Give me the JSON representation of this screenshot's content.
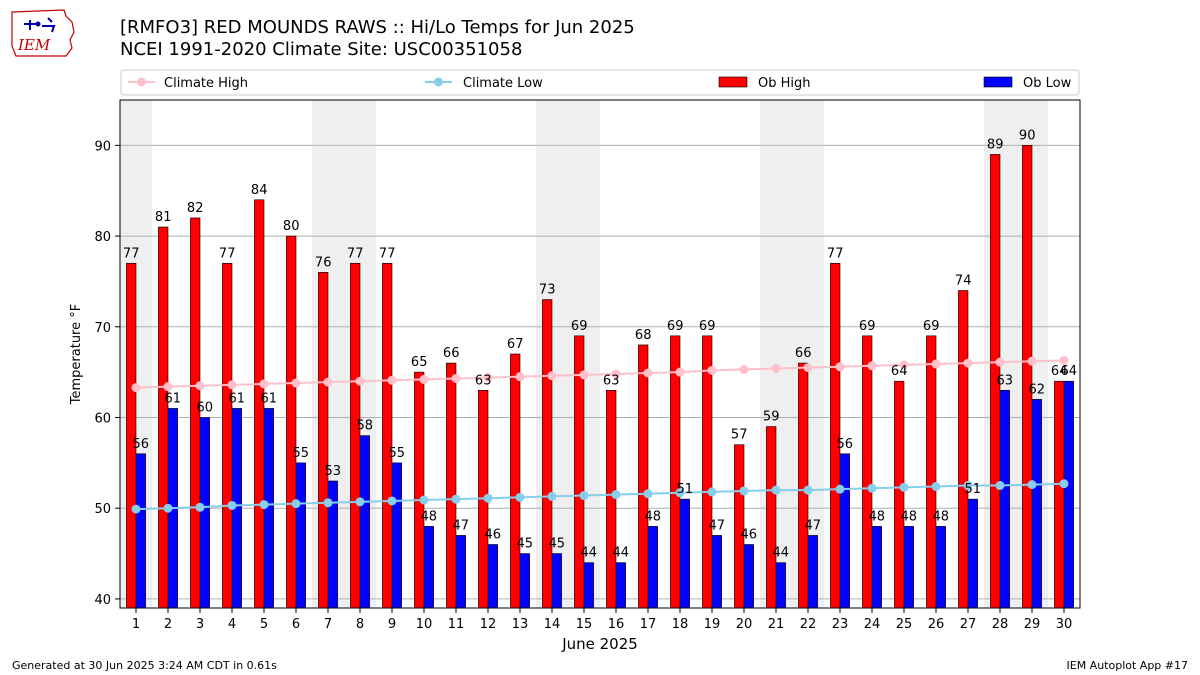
{
  "header": {
    "title": "[RMFO3] RED MOUNDS RAWS :: Hi/Lo Temps for Jun 2025",
    "subtitle": "NCEI 1991-2020 Climate Site: USC00351058"
  },
  "logo": {
    "text": "IEM",
    "icon": "iem-iowa-logo"
  },
  "footer": {
    "generated": "Generated at 30 Jun 2025 3:24 AM CDT in 0.61s",
    "app": "IEM Autoplot App #17"
  },
  "chart_data": {
    "type": "bar",
    "xlabel": "June 2025",
    "ylabel": "Temperature °F",
    "ylim": [
      39,
      95
    ],
    "yticks": [
      40,
      50,
      60,
      70,
      80,
      90
    ],
    "grid": "horizontal",
    "legend_position": "top",
    "weekend_shading": true,
    "shaded_days": [
      1,
      7,
      8,
      14,
      15,
      21,
      22,
      28,
      29
    ],
    "categories": [
      "1",
      "2",
      "3",
      "4",
      "5",
      "6",
      "7",
      "8",
      "9",
      "10",
      "11",
      "12",
      "13",
      "14",
      "15",
      "16",
      "17",
      "18",
      "19",
      "20",
      "21",
      "22",
      "23",
      "24",
      "25",
      "26",
      "27",
      "28",
      "29",
      "30"
    ],
    "series": [
      {
        "name": "Climate High",
        "kind": "line",
        "color": "#ffc0cb",
        "values": [
          63.3,
          63.4,
          63.5,
          63.6,
          63.7,
          63.8,
          63.9,
          64.0,
          64.1,
          64.2,
          64.3,
          64.4,
          64.5,
          64.6,
          64.7,
          64.8,
          64.9,
          65.0,
          65.2,
          65.3,
          65.4,
          65.5,
          65.6,
          65.7,
          65.8,
          65.9,
          66.0,
          66.1,
          66.2,
          66.3
        ]
      },
      {
        "name": "Climate Low",
        "kind": "line",
        "color": "#87ceeb",
        "values": [
          49.9,
          50.0,
          50.1,
          50.3,
          50.4,
          50.5,
          50.6,
          50.7,
          50.8,
          50.9,
          51.0,
          51.1,
          51.2,
          51.3,
          51.4,
          51.5,
          51.6,
          51.7,
          51.8,
          51.9,
          52.0,
          52.0,
          52.1,
          52.2,
          52.3,
          52.4,
          52.5,
          52.5,
          52.6,
          52.7
        ]
      },
      {
        "name": "Ob High",
        "kind": "bar",
        "color": "#ff0000",
        "values": [
          77,
          81,
          82,
          77,
          84,
          80,
          76,
          77,
          77,
          65,
          66,
          63,
          67,
          73,
          69,
          63,
          68,
          69,
          69,
          57,
          59,
          66,
          77,
          69,
          64,
          69,
          74,
          89,
          90,
          64
        ]
      },
      {
        "name": "Ob Low",
        "kind": "bar",
        "color": "#0000ff",
        "values": [
          56,
          61,
          60,
          61,
          61,
          55,
          53,
          58,
          55,
          48,
          47,
          46,
          45,
          45,
          44,
          44,
          48,
          51,
          47,
          46,
          44,
          47,
          56,
          48,
          48,
          48,
          51,
          63,
          62,
          64
        ]
      }
    ]
  }
}
